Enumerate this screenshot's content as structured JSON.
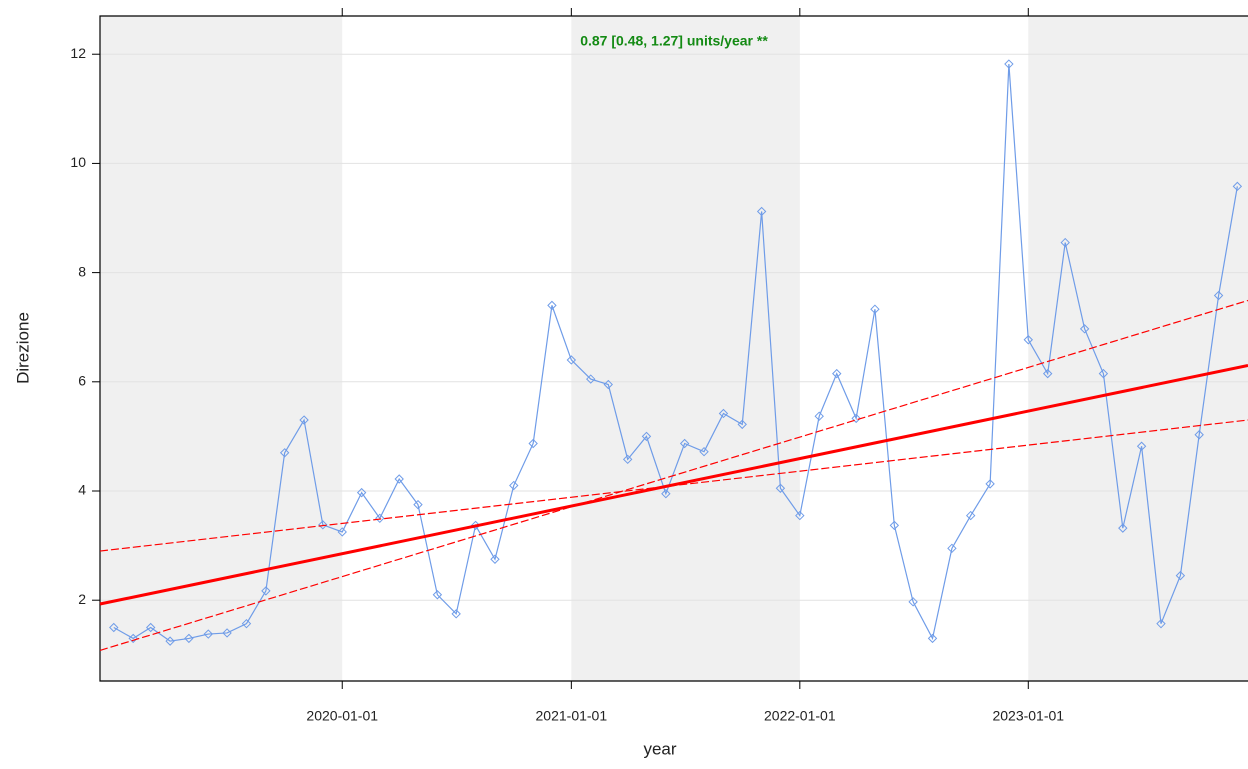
{
  "chart_data": {
    "type": "line",
    "annotation": "0.87 [0.48, 1.27] units/year **",
    "annotation_color": "#138a13",
    "xlabel": "year",
    "ylabel": "Direzione",
    "x": [
      "2019-01-01",
      "2019-02-01",
      "2019-03-01",
      "2019-04-01",
      "2019-05-01",
      "2019-06-01",
      "2019-07-01",
      "2019-08-01",
      "2019-09-01",
      "2019-10-01",
      "2019-11-01",
      "2019-12-01",
      "2020-01-01",
      "2020-02-01",
      "2020-03-01",
      "2020-04-01",
      "2020-05-01",
      "2020-06-01",
      "2020-07-01",
      "2020-08-01",
      "2020-09-01",
      "2020-10-01",
      "2020-11-01",
      "2020-12-01",
      "2021-01-01",
      "2021-02-01",
      "2021-03-01",
      "2021-04-01",
      "2021-05-01",
      "2021-06-01",
      "2021-07-01",
      "2021-08-01",
      "2021-09-01",
      "2021-10-01",
      "2021-11-01",
      "2021-12-01",
      "2022-01-01",
      "2022-02-01",
      "2022-03-01",
      "2022-04-01",
      "2022-05-01",
      "2022-06-01",
      "2022-07-01",
      "2022-08-01",
      "2022-09-01",
      "2022-10-01",
      "2022-11-01",
      "2022-12-01",
      "2023-01-01",
      "2023-02-01",
      "2023-03-01",
      "2023-04-01",
      "2023-05-01",
      "2023-06-01",
      "2023-07-01",
      "2023-08-01",
      "2023-09-01",
      "2023-10-01",
      "2023-11-01",
      "2023-12-01"
    ],
    "series": [
      {
        "color": "#6f9ce8",
        "values": [
          1.5,
          1.3,
          1.5,
          1.25,
          1.3,
          1.38,
          1.4,
          1.57,
          2.17,
          4.7,
          5.3,
          3.38,
          3.25,
          3.97,
          3.5,
          4.22,
          3.75,
          2.1,
          1.75,
          3.37,
          2.75,
          4.1,
          4.87,
          7.4,
          6.4,
          6.05,
          5.95,
          4.58,
          5.0,
          3.95,
          4.87,
          4.72,
          5.42,
          5.22,
          9.12,
          4.05,
          3.55,
          5.37,
          6.15,
          5.33,
          7.33,
          3.37,
          1.97,
          1.3,
          2.95,
          3.55,
          4.13,
          11.82,
          6.77,
          6.15,
          8.55,
          6.97,
          6.15,
          3.32,
          4.82,
          1.57,
          2.45,
          5.03,
          7.58,
          9.58
        ]
      }
    ],
    "trend_lines": [
      {
        "color": "#ff0000",
        "values": [
          1.93,
          6.3
        ]
      },
      {
        "color": "#ff0000",
        "values": [
          1.08,
          7.49
        ]
      },
      {
        "color": "#ff0000",
        "values": [
          2.9,
          5.3
        ]
      }
    ],
    "xlim": [
      "2018-12-10",
      "2023-12-18"
    ],
    "xticks": [
      "2020-01-01",
      "2021-01-01",
      "2022-01-01",
      "2023-01-01"
    ],
    "ylim": [
      0.52,
      12.7
    ],
    "yticks": [
      2,
      4,
      6,
      8,
      10,
      12
    ],
    "grid": true,
    "band_color": "#f0f0f0"
  }
}
